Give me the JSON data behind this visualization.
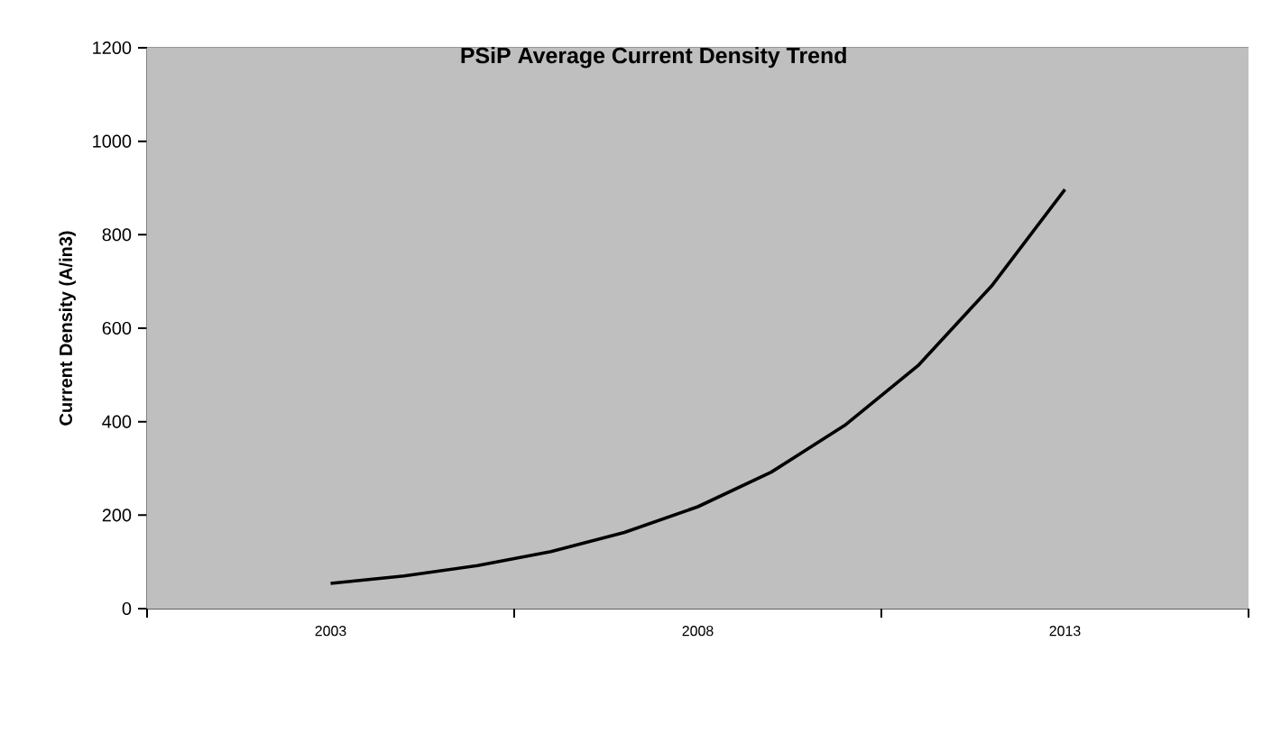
{
  "chart_data": {
    "type": "line",
    "title": "PSiP Average Current Density  Trend",
    "ylabel": "Current Density (A/in3)",
    "x": [
      2003,
      2004,
      2005,
      2006,
      2007,
      2008,
      2009,
      2010,
      2011,
      2012,
      2013
    ],
    "values": [
      54,
      70,
      92,
      122,
      163,
      218,
      292,
      392,
      520,
      690,
      897
    ],
    "color": "#000000",
    "marker": "none",
    "grid": "y",
    "xlim": [
      2000.5,
      2015.5
    ],
    "xticks": [
      {
        "value": 2000.5,
        "label": null
      },
      {
        "value": 2003,
        "label": "2003"
      },
      {
        "value": 2005.5,
        "label": null
      },
      {
        "value": 2008,
        "label": "2008"
      },
      {
        "value": 2010.5,
        "label": null
      },
      {
        "value": 2013,
        "label": "2013"
      },
      {
        "value": 2015.5,
        "label": null
      }
    ],
    "ylim": [
      0,
      1200
    ],
    "yticks": [
      0,
      200,
      400,
      600,
      800,
      1000,
      1200
    ]
  }
}
